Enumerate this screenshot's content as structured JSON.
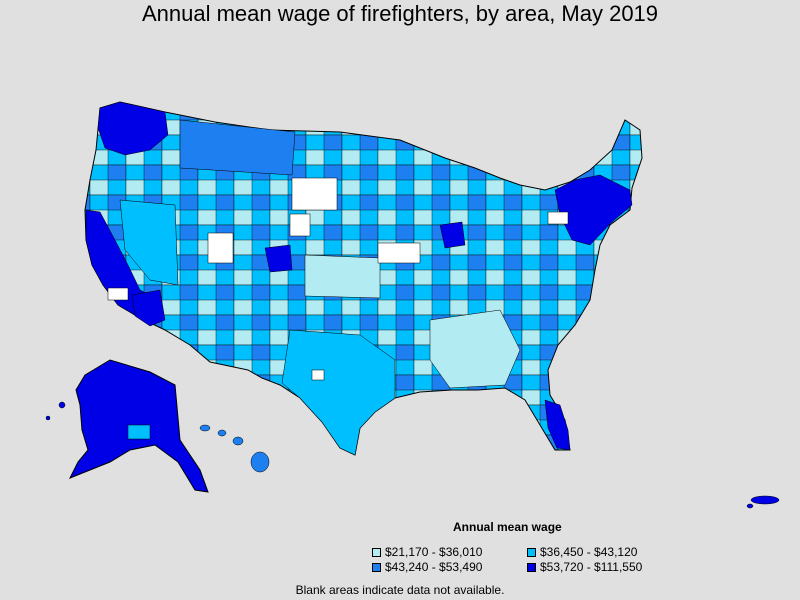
{
  "title": "Annual mean wage of firefighters, by area, May 2019",
  "legend": {
    "title": "Annual mean wage",
    "items": [
      {
        "label": "$21,170 - $36,010",
        "color": "#b2ebf2"
      },
      {
        "label": "$36,450 - $43,120",
        "color": "#00bfff"
      },
      {
        "label": "$43,240 - $53,490",
        "color": "#1e7ff0"
      },
      {
        "label": "$53,720 - $111,550",
        "color": "#0000e6"
      }
    ]
  },
  "footnote": "Blank areas indicate data not available.",
  "colors": {
    "background": "#e0e0e0",
    "no_data": "#ffffff",
    "border": "#000000"
  }
}
